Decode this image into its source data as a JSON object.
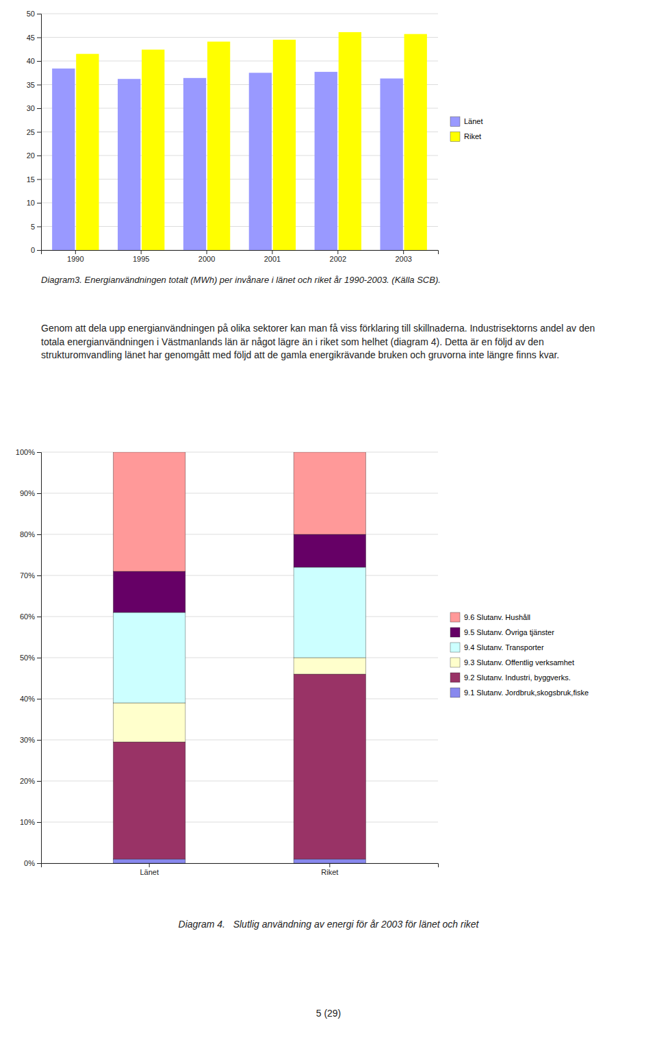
{
  "chart_data": [
    {
      "type": "bar",
      "caption": "Diagram3. Energianvändningen totalt (MWh) per invånare i länet och riket år 1990-2003. (Källa SCB).",
      "categories": [
        "1990",
        "1995",
        "2000",
        "2001",
        "2002",
        "2003"
      ],
      "series": [
        {
          "name": "Länet",
          "color": "#9999FF",
          "values": [
            38.4,
            36.2,
            36.4,
            37.5,
            37.7,
            36.3
          ]
        },
        {
          "name": "Riket",
          "color": "#FFFF00",
          "values": [
            41.5,
            42.4,
            44.1,
            44.5,
            46.1,
            45.7
          ]
        }
      ],
      "ylim": [
        0,
        50
      ],
      "yticks": [
        0,
        5,
        10,
        15,
        20,
        25,
        30,
        35,
        40,
        45,
        50
      ],
      "grid": true,
      "legend": "right"
    },
    {
      "type": "bar",
      "stacked": true,
      "caption": "Diagram 4.   Slutlig användning av energi för år 2003 för länet och riket",
      "categories": [
        "Länet",
        "Riket"
      ],
      "series": [
        {
          "name": "9.1 Slutanv. Jordbruk,skogsbruk,fiske",
          "color": "#8888EE",
          "values": [
            1.0,
            1.0
          ]
        },
        {
          "name": "9.2 Slutanv. Industri, byggverks.",
          "color": "#993366",
          "values": [
            28.5,
            45.0
          ]
        },
        {
          "name": "9.3 Slutanv. Offentlig verksamhet",
          "color": "#FFFFCC",
          "values": [
            9.5,
            4.0
          ]
        },
        {
          "name": "9.4 Slutanv. Transporter",
          "color": "#CCFFFF",
          "values": [
            22.0,
            22.0
          ]
        },
        {
          "name": "9.5 Slutanv. Övriga tjänster",
          "color": "#660066",
          "values": [
            10.0,
            8.0
          ]
        },
        {
          "name": "9.6 Slutanv. Hushåll",
          "color": "#FF9999",
          "values": [
            29.0,
            20.0
          ]
        }
      ],
      "ylim": [
        0,
        100
      ],
      "yticks": [
        {
          "value": 0,
          "label": "0%"
        },
        {
          "value": 10,
          "label": "10%"
        },
        {
          "value": 20,
          "label": "20%"
        },
        {
          "value": 30,
          "label": "30%"
        },
        {
          "value": 40,
          "label": "40%"
        },
        {
          "value": 50,
          "label": "50%"
        },
        {
          "value": 60,
          "label": "60%"
        },
        {
          "value": 70,
          "label": "70%"
        },
        {
          "value": 80,
          "label": "80%"
        },
        {
          "value": 90,
          "label": "90%"
        },
        {
          "value": 100,
          "label": "100%"
        }
      ],
      "grid": true,
      "legend": "right"
    }
  ],
  "body_text": "Genom att dela upp energianvändningen på olika sektorer kan man få viss förklaring till skillnaderna. Industrisektorns andel av den totala energianvändningen i Västmanlands län är något lägre än i riket som helhet (diagram 4). Detta är en följd av den strukturomvandling länet har genomgått med följd att de gamla energikrävande bruken och gruvorna inte längre finns kvar.",
  "page_number": "5 (29)"
}
